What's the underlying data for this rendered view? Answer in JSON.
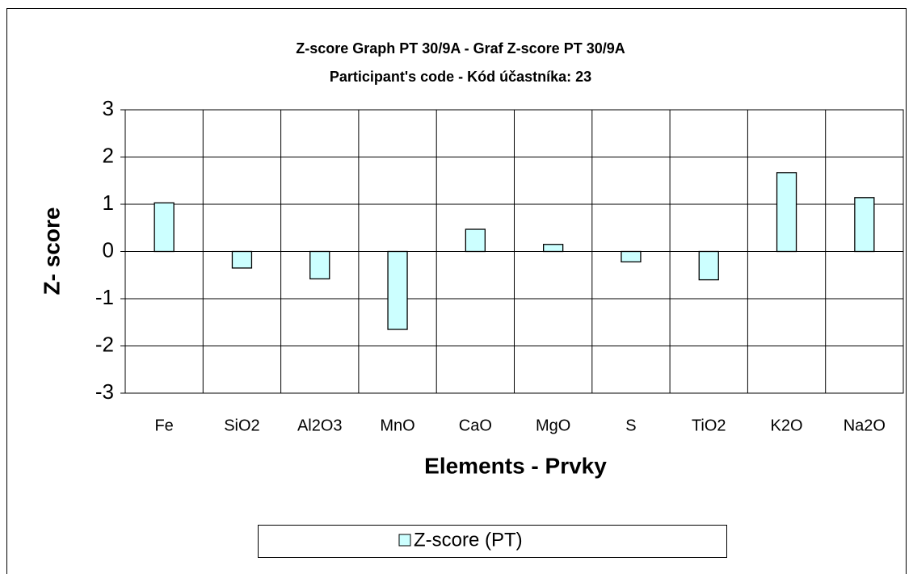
{
  "chart_data": {
    "type": "bar",
    "title": "Z-score Graph PT 30/9A - Graf Z-score PT 30/9A",
    "subtitle": "Participant's code - Kód účastníka:  23",
    "xlabel": "Elements - Prvky",
    "ylabel": "Z- score",
    "categories": [
      "Fe",
      "SiO2",
      "Al2O3",
      "MnO",
      "CaO",
      "MgO",
      "S",
      "TiO2",
      "K2O",
      "Na2O"
    ],
    "series": [
      {
        "name": "Z-score (PT)",
        "color": "#ccffff",
        "values": [
          1.03,
          -0.35,
          -0.58,
          -1.65,
          0.47,
          0.15,
          -0.22,
          -0.6,
          1.67,
          1.14
        ]
      }
    ],
    "ylim": [
      -3,
      3
    ],
    "yticks": [
      -3,
      -2,
      -1,
      0,
      1,
      2,
      3
    ],
    "grid": true,
    "legend": "bottom"
  }
}
